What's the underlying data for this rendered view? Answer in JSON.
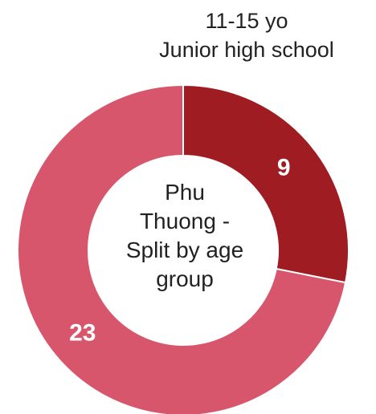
{
  "chart_data": {
    "type": "pie",
    "subtype": "donut",
    "center_title_lines": [
      "Phu",
      "Thuong -",
      "Split by age",
      "group"
    ],
    "slices": [
      {
        "value": 9,
        "label": "9",
        "color": "#9e1c22"
      },
      {
        "value": 23,
        "label": "23",
        "color": "#d8566c"
      }
    ],
    "annotation_lines": [
      "11-15 yo",
      "Junior high school"
    ],
    "legend": "none"
  }
}
